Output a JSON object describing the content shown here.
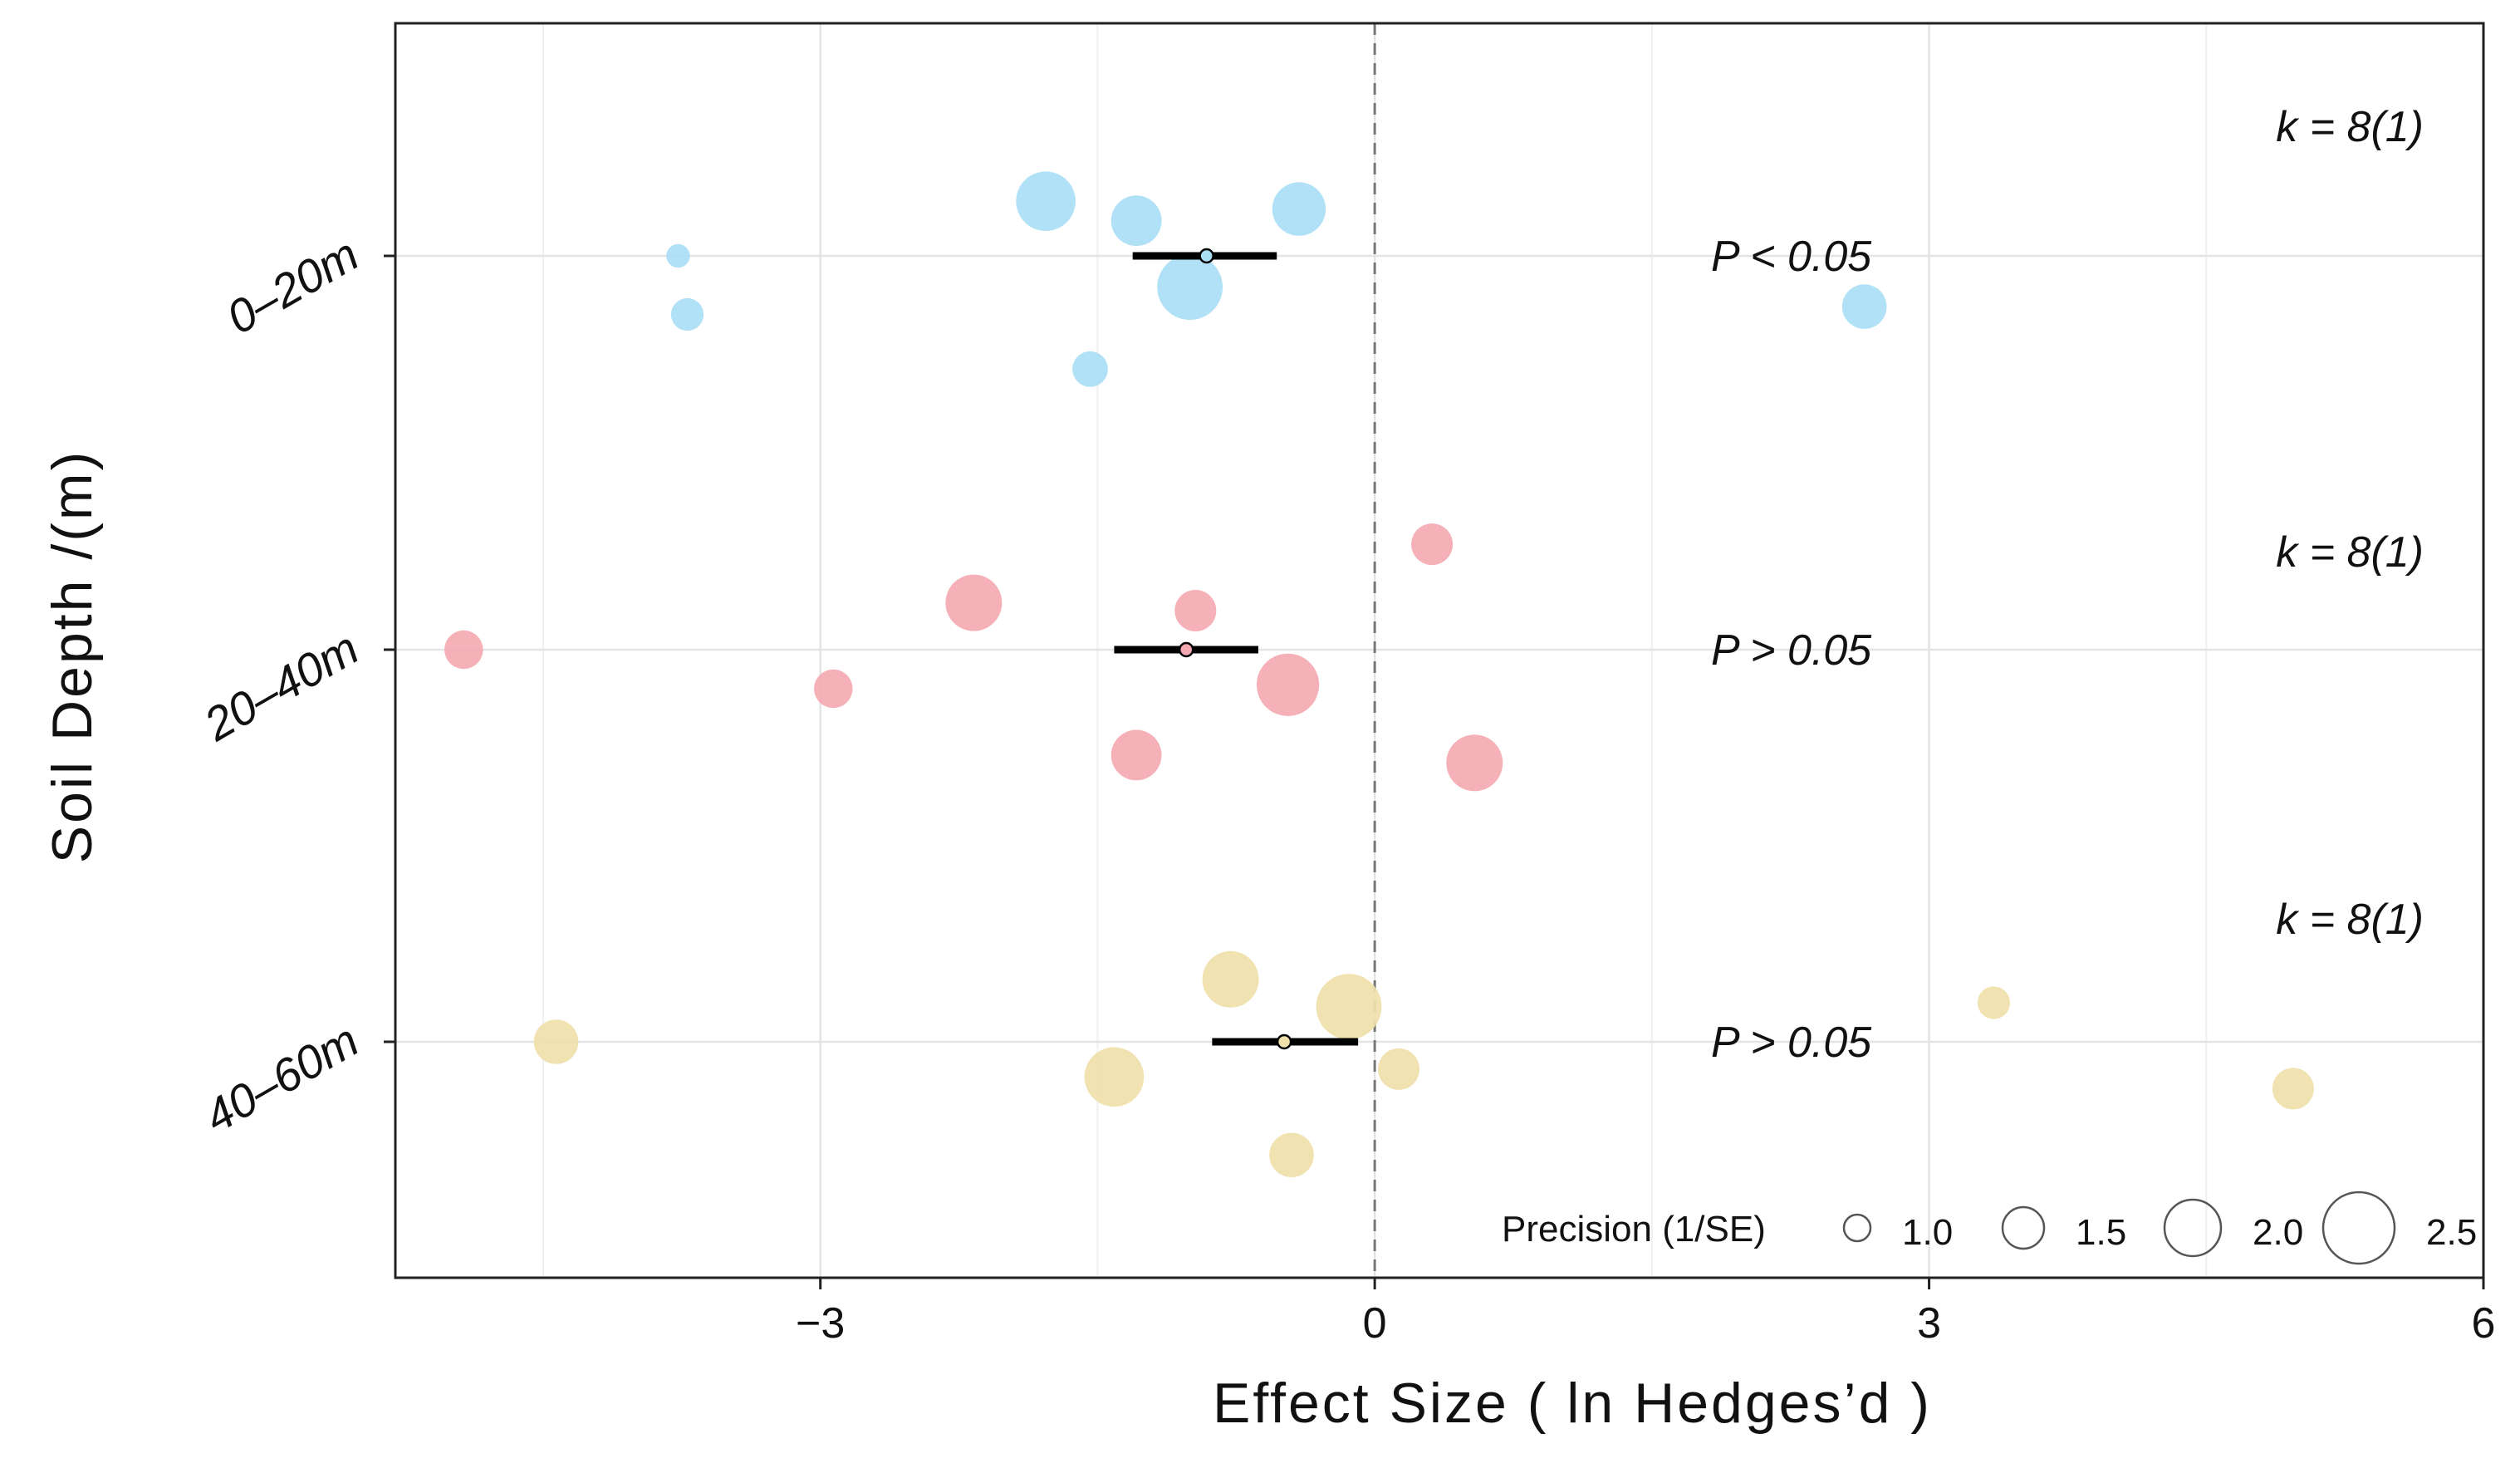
{
  "chart_data": {
    "type": "scatter",
    "subtype": "orchard-plot",
    "xlabel": "Effect Size ( ln Hedges’d )",
    "ylabel": "Soil  Depth /(m)",
    "xlim": [
      -5.3,
      6
    ],
    "xticks": [
      -3,
      0,
      3,
      6
    ],
    "xtick_labels": [
      "−3",
      "0",
      "3",
      "6"
    ],
    "grid": true,
    "reference_line_x": 0,
    "categories": [
      "0–20m",
      "20–40m",
      "40–60m"
    ],
    "groups": [
      {
        "name": "0–20m",
        "color": "#a9def5",
        "estimate": -0.91,
        "ci": [
          -1.31,
          -0.53
        ],
        "p_text": "P < 0.05",
        "k_text": "k = 8(1)",
        "points": [
          {
            "x": -1.78,
            "y_offset": 0.14,
            "precision": 2.1
          },
          {
            "x": -1.29,
            "y_offset": 0.09,
            "precision": 1.8
          },
          {
            "x": -0.41,
            "y_offset": 0.12,
            "precision": 1.9
          },
          {
            "x": -3.77,
            "y_offset": 0.0,
            "precision": 0.9
          },
          {
            "x": -1.0,
            "y_offset": -0.08,
            "precision": 2.3
          },
          {
            "x": -3.72,
            "y_offset": -0.15,
            "precision": 1.2
          },
          {
            "x": 2.65,
            "y_offset": -0.13,
            "precision": 1.6
          },
          {
            "x": -1.54,
            "y_offset": -0.29,
            "precision": 1.3
          }
        ]
      },
      {
        "name": "20–40m",
        "color": "#f4a9b2",
        "estimate": -1.02,
        "ci": [
          -1.41,
          -0.63
        ],
        "p_text": "P > 0.05",
        "k_text": "k = 8(1)",
        "points": [
          {
            "x": 0.31,
            "y_offset": 0.27,
            "precision": 1.5
          },
          {
            "x": -2.17,
            "y_offset": 0.12,
            "precision": 2.0
          },
          {
            "x": -0.97,
            "y_offset": 0.1,
            "precision": 1.5
          },
          {
            "x": -4.93,
            "y_offset": 0.0,
            "precision": 1.4
          },
          {
            "x": -2.93,
            "y_offset": -0.1,
            "precision": 1.4
          },
          {
            "x": -0.47,
            "y_offset": -0.09,
            "precision": 2.2
          },
          {
            "x": -1.29,
            "y_offset": -0.27,
            "precision": 1.8
          },
          {
            "x": 0.54,
            "y_offset": -0.29,
            "precision": 2.0
          }
        ]
      },
      {
        "name": "40–60m",
        "color": "#f0e0aa",
        "estimate": -0.49,
        "ci": [
          -0.88,
          -0.09
        ],
        "p_text": "P > 0.05",
        "k_text": "k = 8(1)",
        "points": [
          {
            "x": -0.78,
            "y_offset": 0.16,
            "precision": 2.0
          },
          {
            "x": -0.14,
            "y_offset": 0.09,
            "precision": 2.3
          },
          {
            "x": 3.35,
            "y_offset": 0.1,
            "precision": 1.2
          },
          {
            "x": -4.43,
            "y_offset": 0.0,
            "precision": 1.6
          },
          {
            "x": -1.41,
            "y_offset": -0.09,
            "precision": 2.1
          },
          {
            "x": 0.13,
            "y_offset": -0.07,
            "precision": 1.5
          },
          {
            "x": 4.97,
            "y_offset": -0.12,
            "precision": 1.5
          },
          {
            "x": -0.45,
            "y_offset": -0.29,
            "precision": 1.6
          }
        ]
      }
    ],
    "legend": {
      "title": "Precision (1/SE)",
      "position": "bottom-right",
      "items": [
        {
          "label": "1.0",
          "value": 1.0
        },
        {
          "label": "1.5",
          "value": 1.5
        },
        {
          "label": "2.0",
          "value": 2.0
        },
        {
          "label": "2.5",
          "value": 2.5
        }
      ]
    }
  }
}
